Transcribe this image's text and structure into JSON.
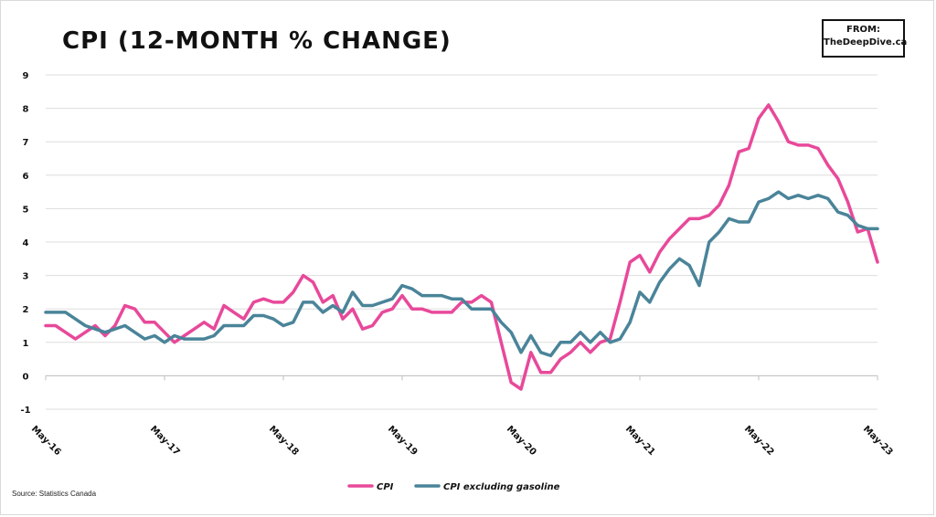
{
  "header": {
    "title": "CPI (12-MONTH % CHANGE)",
    "badge_line1": "FROM:",
    "badge_line2": "TheDeepDive.ca"
  },
  "footer": {
    "source": "Source: Statistics Canada"
  },
  "chart_data": {
    "type": "line",
    "title": "CPI (12-MONTH % CHANGE)",
    "xlabel": "",
    "ylabel": "",
    "ylim": [
      -1,
      9
    ],
    "yticks": [
      -1,
      0,
      1,
      2,
      3,
      4,
      5,
      6,
      7,
      8,
      9
    ],
    "x_tick_labels": [
      "May-16",
      "May-17",
      "May-18",
      "May-19",
      "May-20",
      "May-21",
      "May-22",
      "May-23"
    ],
    "x_tick_index": [
      0,
      12,
      24,
      36,
      48,
      60,
      72,
      84
    ],
    "grid": "horizontal",
    "legend": "bottom",
    "colors": {
      "cpi": "#e8499a",
      "cpi_ex_gas": "#4a8499"
    },
    "series": [
      {
        "name": "CPI",
        "values": [
          1.5,
          1.5,
          1.3,
          1.1,
          1.3,
          1.5,
          1.2,
          1.5,
          2.1,
          2.0,
          1.6,
          1.6,
          1.3,
          1.0,
          1.2,
          1.4,
          1.6,
          1.4,
          2.1,
          1.9,
          1.7,
          2.2,
          2.3,
          2.2,
          2.2,
          2.5,
          3.0,
          2.8,
          2.2,
          2.4,
          1.7,
          2.0,
          1.4,
          1.5,
          1.9,
          2.0,
          2.4,
          2.0,
          2.0,
          1.9,
          1.9,
          1.9,
          2.2,
          2.2,
          2.4,
          2.2,
          1.0,
          -0.2,
          -0.4,
          0.7,
          0.1,
          0.1,
          0.5,
          0.7,
          1.0,
          0.7,
          1.0,
          1.1,
          2.2,
          3.4,
          3.6,
          3.1,
          3.7,
          4.1,
          4.4,
          4.7,
          4.7,
          4.8,
          5.1,
          5.7,
          6.7,
          6.8,
          7.7,
          8.1,
          7.6,
          7.0,
          6.9,
          6.9,
          6.8,
          6.3,
          5.9,
          5.2,
          4.3,
          4.4,
          3.4
        ]
      },
      {
        "name": "CPI excluding gasoline",
        "values": [
          1.9,
          1.9,
          1.9,
          1.7,
          1.5,
          1.4,
          1.3,
          1.4,
          1.5,
          1.3,
          1.1,
          1.2,
          1.0,
          1.2,
          1.1,
          1.1,
          1.1,
          1.2,
          1.5,
          1.5,
          1.5,
          1.8,
          1.8,
          1.7,
          1.5,
          1.6,
          2.2,
          2.2,
          1.9,
          2.1,
          1.9,
          2.5,
          2.1,
          2.1,
          2.2,
          2.3,
          2.7,
          2.6,
          2.4,
          2.4,
          2.4,
          2.3,
          2.3,
          2.0,
          2.0,
          2.0,
          1.6,
          1.3,
          0.7,
          1.2,
          0.7,
          0.6,
          1.0,
          1.0,
          1.3,
          1.0,
          1.3,
          1.0,
          1.1,
          1.6,
          2.5,
          2.2,
          2.8,
          3.2,
          3.5,
          3.3,
          2.7,
          4.0,
          4.3,
          4.7,
          4.6,
          4.6,
          5.2,
          5.3,
          5.5,
          5.3,
          5.4,
          5.3,
          5.4,
          5.3,
          4.9,
          4.8,
          4.5,
          4.4,
          4.4
        ]
      }
    ]
  }
}
